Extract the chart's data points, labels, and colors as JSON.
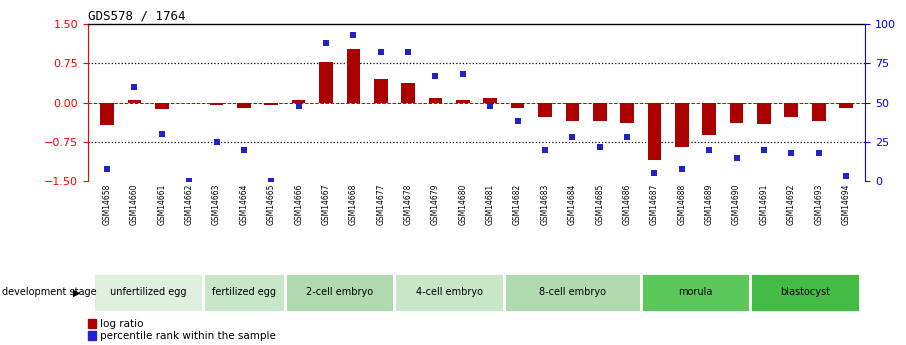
{
  "title": "GDS578 / 1764",
  "samples": [
    "GSM14658",
    "GSM14660",
    "GSM14661",
    "GSM14662",
    "GSM14663",
    "GSM14664",
    "GSM14665",
    "GSM14666",
    "GSM14667",
    "GSM14668",
    "GSM14677",
    "GSM14678",
    "GSM14679",
    "GSM14680",
    "GSM14681",
    "GSM14682",
    "GSM14683",
    "GSM14684",
    "GSM14685",
    "GSM14686",
    "GSM14687",
    "GSM14688",
    "GSM14689",
    "GSM14690",
    "GSM14691",
    "GSM14692",
    "GSM14693",
    "GSM14694"
  ],
  "log_ratio": [
    -0.42,
    0.05,
    -0.12,
    0.0,
    -0.05,
    -0.1,
    -0.05,
    0.05,
    0.78,
    1.02,
    0.45,
    0.38,
    0.08,
    0.05,
    0.08,
    -0.1,
    -0.28,
    -0.35,
    -0.35,
    -0.38,
    -1.1,
    -0.85,
    -0.62,
    -0.38,
    -0.4,
    -0.28,
    -0.35,
    -0.1
  ],
  "percentile_rank": [
    8,
    60,
    30,
    0,
    25,
    20,
    0,
    48,
    88,
    93,
    82,
    82,
    67,
    68,
    48,
    38,
    20,
    28,
    22,
    28,
    5,
    8,
    20,
    15,
    20,
    18,
    18,
    3
  ],
  "stage_groups": [
    {
      "label": "unfertilized egg",
      "start": 0,
      "end": 4,
      "color": "#dff0df"
    },
    {
      "label": "fertilized egg",
      "start": 4,
      "end": 7,
      "color": "#c8e6c8"
    },
    {
      "label": "2-cell embryo",
      "start": 7,
      "end": 11,
      "color": "#b0dbb0"
    },
    {
      "label": "4-cell embryo",
      "start": 11,
      "end": 15,
      "color": "#c8e6c8"
    },
    {
      "label": "8-cell embryo",
      "start": 15,
      "end": 20,
      "color": "#b0dbb0"
    },
    {
      "label": "morula",
      "start": 20,
      "end": 24,
      "color": "#5cc85c"
    },
    {
      "label": "blastocyst",
      "start": 24,
      "end": 28,
      "color": "#44bb44"
    }
  ],
  "bar_color": "#aa0000",
  "dot_color": "#2222cc",
  "ylim_left": [
    -1.5,
    1.5
  ],
  "ylim_right": [
    0,
    100
  ],
  "yticks_left": [
    -1.5,
    -0.75,
    0,
    0.75,
    1.5
  ],
  "yticks_right": [
    0,
    25,
    50,
    75,
    100
  ],
  "hline_y": [
    0.75,
    -0.75
  ],
  "zero_line_color": "#cc0000",
  "bar_width": 0.5,
  "dot_size": 18
}
